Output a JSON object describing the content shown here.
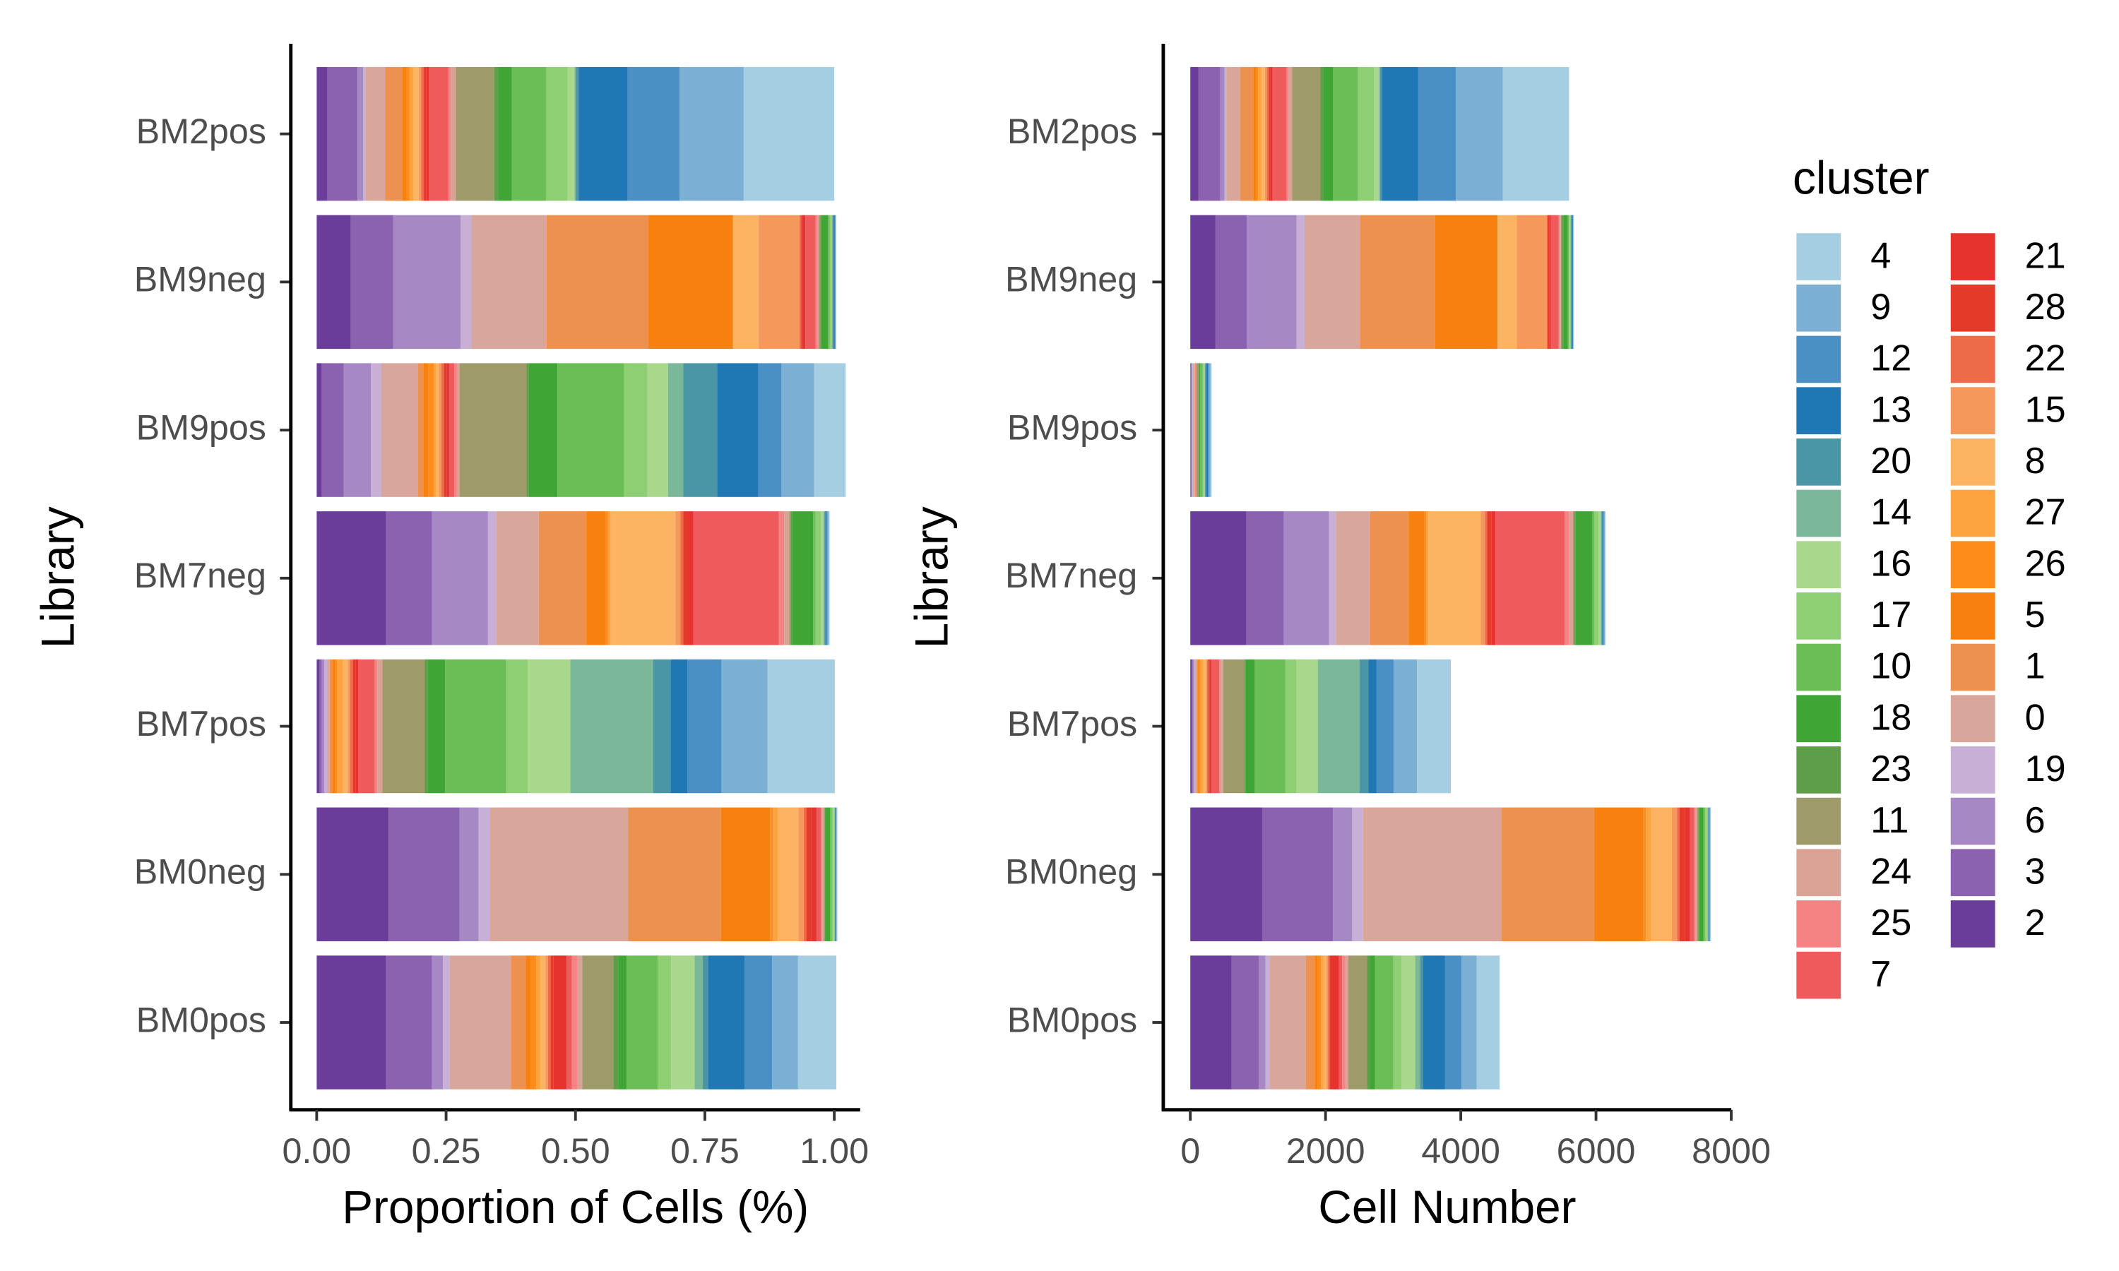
{
  "chart_data": [
    {
      "type": "stacked-barh",
      "xlabel": "Proportion of Cells (%)",
      "ylabel": "Library",
      "categories": [
        "BM2pos",
        "BM9neg",
        "BM9pos",
        "BM7neg",
        "BM7pos",
        "BM0neg",
        "BM0pos"
      ],
      "xlim": [
        -0.05,
        1.05
      ],
      "xticks": [
        {
          "value": 0,
          "label": "0.00"
        },
        {
          "value": 0.25,
          "label": "0.25"
        },
        {
          "value": 0.5,
          "label": "0.50"
        },
        {
          "value": 0.75,
          "label": "0.75"
        },
        {
          "value": 1,
          "label": "1.00"
        }
      ],
      "series": [
        {
          "name": "2",
          "color": "#6a3d9a",
          "values": [
            0.021,
            0.066,
            0.01,
            0.134,
            0.005,
            0.139,
            0.134
          ]
        },
        {
          "name": "3",
          "color": "#8b62b0",
          "values": [
            0.058,
            0.082,
            0.042,
            0.089,
            0.005,
            0.137,
            0.089
          ]
        },
        {
          "name": "6",
          "color": "#a689c4",
          "values": [
            0.011,
            0.13,
            0.053,
            0.108,
            0.005,
            0.037,
            0.021
          ]
        },
        {
          "name": "19",
          "color": "#c7afd6",
          "values": [
            0.005,
            0.021,
            0.02,
            0.016,
            0.005,
            0.021,
            0.013
          ]
        },
        {
          "name": "0",
          "color": "#d9a69b",
          "values": [
            0.037,
            0.145,
            0.071,
            0.082,
            0.005,
            0.268,
            0.118
          ]
        },
        {
          "name": "1",
          "color": "#ec914f",
          "values": [
            0.034,
            0.197,
            0.01,
            0.092,
            0.005,
            0.179,
            0.029
          ]
        },
        {
          "name": "5",
          "color": "#f8800e",
          "values": [
            0.008,
            0.163,
            0.01,
            0.037,
            0.005,
            0.095,
            0.01
          ]
        },
        {
          "name": "26",
          "color": "#fe8c1b",
          "values": [
            0.005,
            0,
            0.01,
            0.005,
            0.005,
            0.005,
            0.01
          ]
        },
        {
          "name": "27",
          "color": "#fda340",
          "values": [
            0.008,
            0,
            0.005,
            0.005,
            0.01,
            0.01,
            0.008
          ]
        },
        {
          "name": "8",
          "color": "#fdb462",
          "values": [
            0.01,
            0.05,
            0.005,
            0.125,
            0.01,
            0.04,
            0.01
          ]
        },
        {
          "name": "15",
          "color": "#f5985c",
          "values": [
            0.005,
            0.079,
            0.005,
            0.01,
            0.005,
            0.01,
            0.005
          ]
        },
        {
          "name": "22",
          "color": "#ee6b4a",
          "values": [
            0.005,
            0.003,
            0.005,
            0.005,
            0.005,
            0.005,
            0.005
          ]
        },
        {
          "name": "28",
          "color": "#e43a2a",
          "values": [
            0.005,
            0.003,
            0.005,
            0.01,
            0.005,
            0.01,
            0.005
          ]
        },
        {
          "name": "21",
          "color": "#e6332e",
          "values": [
            0.005,
            0.005,
            0.005,
            0.01,
            0.005,
            0.01,
            0.026
          ]
        },
        {
          "name": "7",
          "color": "#ef5a5c",
          "values": [
            0.037,
            0.02,
            0.01,
            0.165,
            0.032,
            0.008,
            0.01
          ]
        },
        {
          "name": "25",
          "color": "#f58383",
          "values": [
            0.005,
            0.003,
            0.005,
            0.01,
            0.005,
            0.003,
            0.01
          ]
        },
        {
          "name": "24",
          "color": "#daa294",
          "values": [
            0.01,
            0.003,
            0.005,
            0.01,
            0.01,
            0.003,
            0.01
          ]
        },
        {
          "name": "11",
          "color": "#9e9a6a",
          "values": [
            0.074,
            0.003,
            0.129,
            0.003,
            0.082,
            0.002,
            0.06
          ]
        },
        {
          "name": "23",
          "color": "#5f9e48",
          "values": [
            0.008,
            0.003,
            0.005,
            0.003,
            0.005,
            0.002,
            0.01
          ]
        },
        {
          "name": "18",
          "color": "#3fa535",
          "values": [
            0.026,
            0.012,
            0.055,
            0.04,
            0.034,
            0.008,
            0.016
          ]
        },
        {
          "name": "10",
          "color": "#6abe55",
          "values": [
            0.066,
            0.003,
            0.129,
            0.005,
            0.118,
            0.003,
            0.06
          ]
        },
        {
          "name": "17",
          "color": "#8fcf74",
          "values": [
            0.042,
            0.002,
            0.045,
            0.01,
            0.042,
            0.003,
            0.026
          ]
        },
        {
          "name": "16",
          "color": "#a9d78b",
          "values": [
            0.013,
            0.002,
            0.04,
            0.005,
            0.082,
            0.002,
            0.045
          ]
        },
        {
          "name": "14",
          "color": "#7bb89a",
          "values": [
            0.003,
            0.002,
            0.029,
            0.002,
            0.16,
            0.001,
            0.016
          ]
        },
        {
          "name": "20",
          "color": "#4b96a6",
          "values": [
            0.005,
            0.002,
            0.066,
            0.002,
            0.034,
            0.001,
            0.01
          ]
        },
        {
          "name": "13",
          "color": "#1f78b4",
          "values": [
            0.095,
            0.002,
            0.079,
            0.002,
            0.032,
            0.001,
            0.071
          ]
        },
        {
          "name": "12",
          "color": "#4a90c4",
          "values": [
            0.1,
            0.001,
            0.045,
            0.002,
            0.066,
            0.001,
            0.053
          ]
        },
        {
          "name": "9",
          "color": "#7bafd4",
          "values": [
            0.124,
            0.001,
            0.063,
            0.002,
            0.089,
            0.001,
            0.05
          ]
        },
        {
          "name": "4",
          "color": "#a6cee3",
          "values": [
            0.175,
            0.001,
            0.061,
            0.002,
            0.13,
            0.001,
            0.074
          ]
        }
      ]
    },
    {
      "type": "stacked-barh",
      "xlabel": "Cell Number",
      "ylabel": "Library",
      "categories": [
        "BM2pos",
        "BM9neg",
        "BM9pos",
        "BM7neg",
        "BM7pos",
        "BM0neg",
        "BM0pos"
      ],
      "xlim": [
        -400,
        8000
      ],
      "xticks": [
        0,
        2000,
        4000,
        6000,
        8000
      ],
      "legend_title": "cluster",
      "series": [
        {
          "name": "2",
          "color": "#6a3d9a",
          "values": [
            118,
            373,
            3,
            831,
            19,
            1063,
            610
          ]
        },
        {
          "name": "3",
          "color": "#8b62b0",
          "values": [
            325,
            463,
            13,
            552,
            19,
            1048,
            405
          ]
        },
        {
          "name": "6",
          "color": "#a689c4",
          "values": [
            62,
            735,
            16,
            670,
            19,
            283,
            96
          ]
        },
        {
          "name": "19",
          "color": "#c7afd6",
          "values": [
            28,
            119,
            6,
            99,
            19,
            161,
            59
          ]
        },
        {
          "name": "0",
          "color": "#d9a69b",
          "values": [
            207,
            819,
            21,
            508,
            19,
            2050,
            537
          ]
        },
        {
          "name": "1",
          "color": "#ec914f",
          "values": [
            190,
            1113,
            3,
            570,
            19,
            1369,
            132
          ]
        },
        {
          "name": "5",
          "color": "#f8800e",
          "values": [
            45,
            921,
            3,
            229,
            19,
            727,
            46
          ]
        },
        {
          "name": "26",
          "color": "#fe8c1b",
          "values": [
            28,
            0,
            3,
            31,
            19,
            38,
            46
          ]
        },
        {
          "name": "27",
          "color": "#fda340",
          "values": [
            45,
            0,
            2,
            31,
            39,
            77,
            36
          ]
        },
        {
          "name": "8",
          "color": "#fdb462",
          "values": [
            56,
            283,
            2,
            775,
            39,
            306,
            46
          ]
        },
        {
          "name": "15",
          "color": "#f5985c",
          "values": [
            28,
            446,
            2,
            62,
            19,
            77,
            23
          ]
        },
        {
          "name": "22",
          "color": "#ee6b4a",
          "values": [
            28,
            17,
            2,
            31,
            19,
            38,
            23
          ]
        },
        {
          "name": "28",
          "color": "#e43a2a",
          "values": [
            28,
            17,
            2,
            62,
            19,
            77,
            23
          ]
        },
        {
          "name": "21",
          "color": "#e6332e",
          "values": [
            28,
            28,
            2,
            62,
            19,
            77,
            118
          ]
        },
        {
          "name": "7",
          "color": "#ef5a5c",
          "values": [
            207,
            113,
            3,
            1023,
            123,
            61,
            46
          ]
        },
        {
          "name": "25",
          "color": "#f58383",
          "values": [
            28,
            17,
            2,
            62,
            19,
            23,
            46
          ]
        },
        {
          "name": "24",
          "color": "#daa294",
          "values": [
            56,
            17,
            2,
            62,
            39,
            23,
            46
          ]
        },
        {
          "name": "11",
          "color": "#9e9a6a",
          "values": [
            414,
            17,
            39,
            19,
            316,
            15,
            273
          ]
        },
        {
          "name": "23",
          "color": "#5f9e48",
          "values": [
            45,
            17,
            2,
            19,
            19,
            15,
            46
          ]
        },
        {
          "name": "18",
          "color": "#3fa535",
          "values": [
            146,
            68,
            17,
            248,
            131,
            61,
            73
          ]
        },
        {
          "name": "10",
          "color": "#6abe55",
          "values": [
            370,
            17,
            39,
            31,
            454,
            23,
            273
          ]
        },
        {
          "name": "17",
          "color": "#8fcf74",
          "values": [
            235,
            11,
            14,
            62,
            162,
            23,
            118
          ]
        },
        {
          "name": "16",
          "color": "#a9d78b",
          "values": [
            73,
            11,
            12,
            31,
            316,
            15,
            205
          ]
        },
        {
          "name": "14",
          "color": "#7bb89a",
          "values": [
            17,
            11,
            9,
            12,
            616,
            8,
            73
          ]
        },
        {
          "name": "20",
          "color": "#4b96a6",
          "values": [
            28,
            11,
            20,
            12,
            131,
            8,
            46
          ]
        },
        {
          "name": "13",
          "color": "#1f78b4",
          "values": [
            532,
            11,
            24,
            12,
            123,
            8,
            323
          ]
        },
        {
          "name": "12",
          "color": "#4a90c4",
          "values": [
            560,
            6,
            14,
            12,
            254,
            8,
            241
          ]
        },
        {
          "name": "9",
          "color": "#7bafd4",
          "values": [
            694,
            6,
            19,
            12,
            343,
            8,
            228
          ]
        },
        {
          "name": "4",
          "color": "#a6cee3",
          "values": [
            980,
            6,
            18,
            12,
            501,
            8,
            337
          ]
        }
      ]
    }
  ]
}
